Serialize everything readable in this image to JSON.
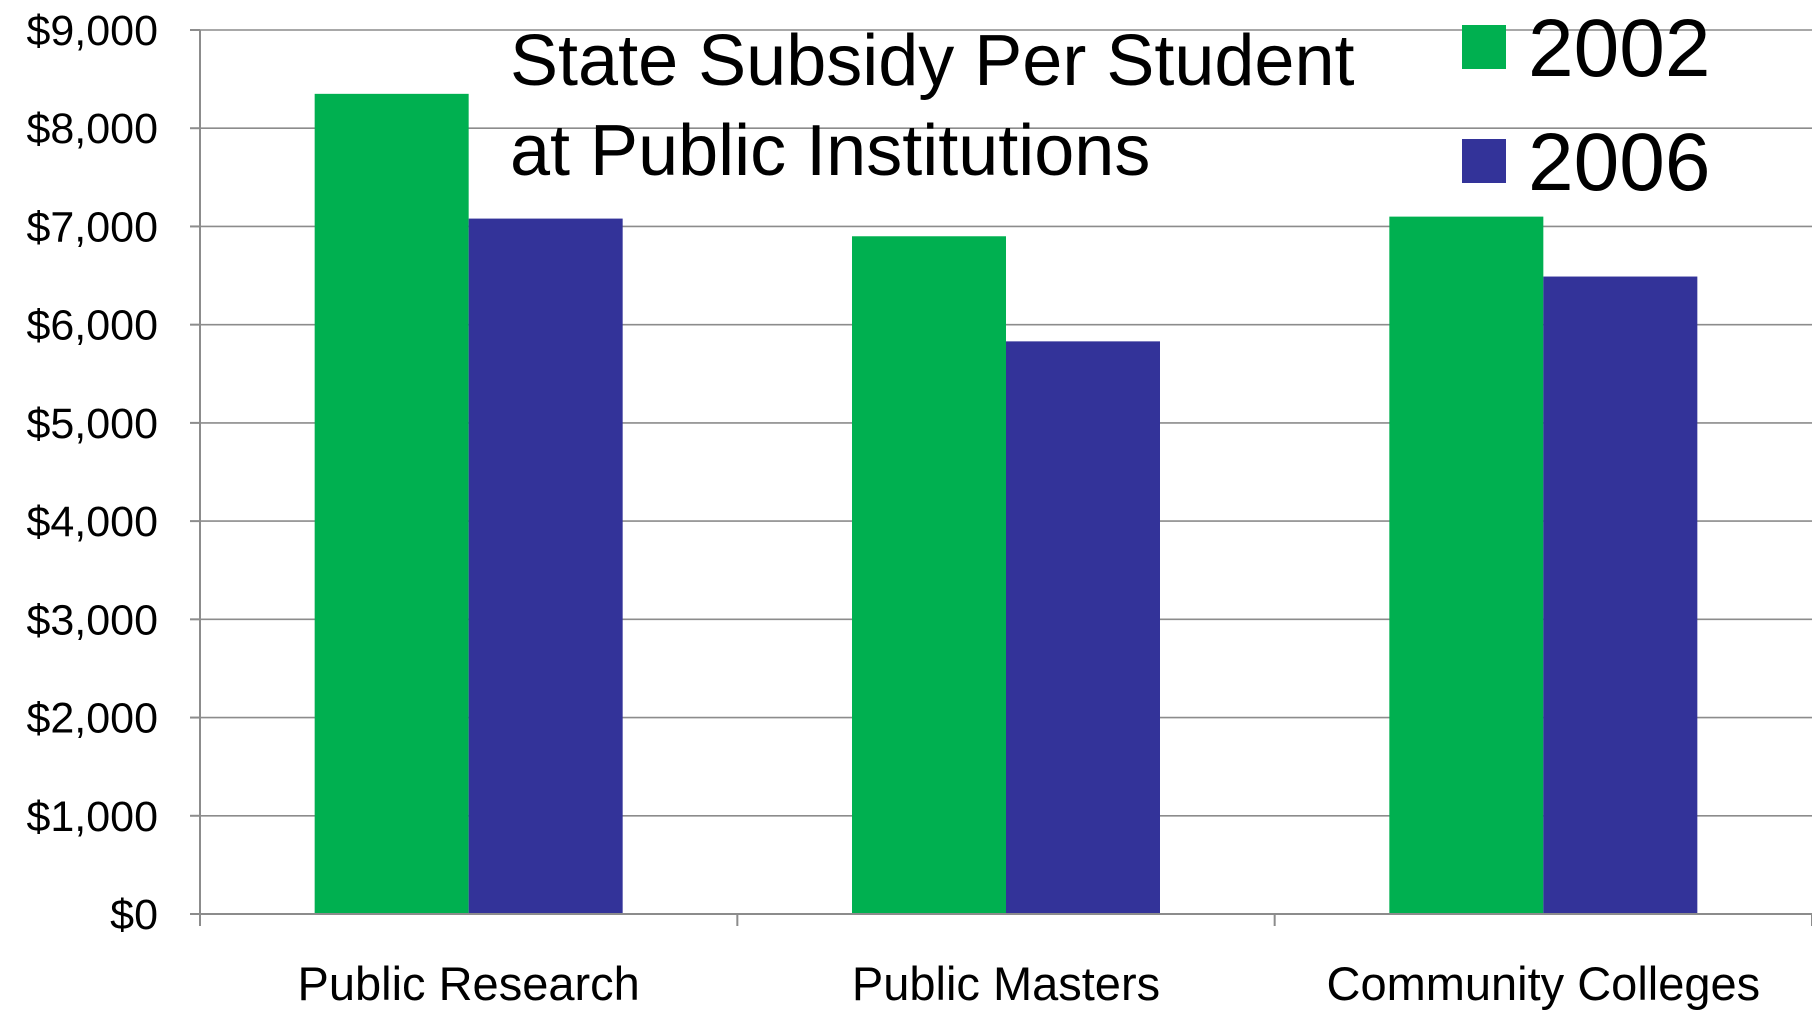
{
  "chart_data": {
    "type": "bar",
    "title_lines": [
      "State Subsidy Per Student",
      "at Public Institutions"
    ],
    "categories": [
      "Public Research",
      "Public Masters",
      "Community Colleges"
    ],
    "series": [
      {
        "name": "2002",
        "color": "#00b050",
        "values": [
          8350,
          6900,
          7100
        ]
      },
      {
        "name": "2006",
        "color": "#333399",
        "values": [
          7080,
          5830,
          6490
        ]
      }
    ],
    "ylim": [
      0,
      9000
    ],
    "yticks": [
      0,
      1000,
      2000,
      3000,
      4000,
      5000,
      6000,
      7000,
      8000,
      9000
    ],
    "ytick_labels": [
      "$0",
      "$1,000",
      "$2,000",
      "$3,000",
      "$4,000",
      "$5,000",
      "$6,000",
      "$7,000",
      "$8,000",
      "$9,000"
    ],
    "xlabel": "",
    "ylabel": "",
    "grid": true,
    "legend_position": "top-right"
  }
}
